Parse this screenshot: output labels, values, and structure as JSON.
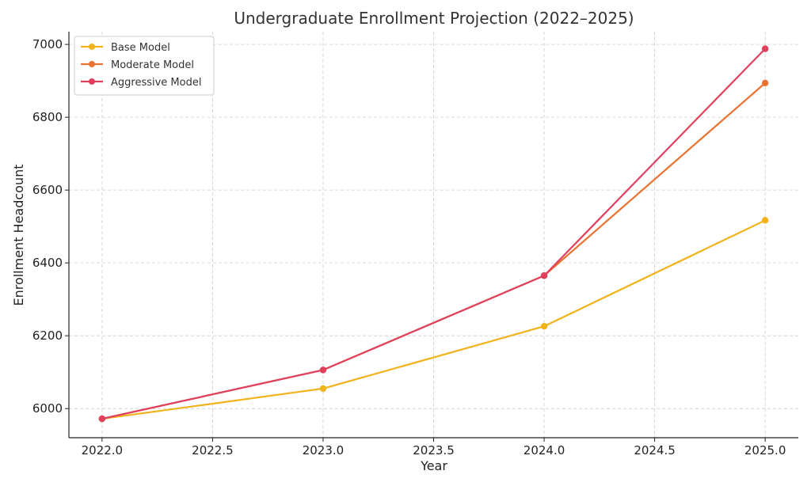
{
  "chart_data": {
    "type": "line",
    "title": "Undergraduate Enrollment Projection (2022–2025)",
    "xlabel": "Year",
    "ylabel": "Enrollment Headcount",
    "x": [
      2022,
      2023,
      2024,
      2025
    ],
    "xlim": [
      2021.85,
      2025.15
    ],
    "ylim": [
      5920,
      7035
    ],
    "xticks": [
      2022.0,
      2022.5,
      2023.0,
      2023.5,
      2024.0,
      2024.5,
      2025.0
    ],
    "xtick_labels": [
      "2022.0",
      "2022.5",
      "2023.0",
      "2023.5",
      "2024.0",
      "2024.5",
      "2025.0"
    ],
    "yticks": [
      6000,
      6200,
      6400,
      6600,
      6800,
      7000
    ],
    "ytick_labels": [
      "6000",
      "6200",
      "6400",
      "6600",
      "6800",
      "7000"
    ],
    "grid": true,
    "legend_position": "top-left",
    "series": [
      {
        "name": "Base Model",
        "color": "#f2b21a",
        "values": [
          5972,
          6055,
          6226,
          6517
        ]
      },
      {
        "name": "Moderate Model",
        "color": "#ea7332",
        "values": [
          5972,
          6106,
          6365,
          6894
        ]
      },
      {
        "name": "Aggressive Model",
        "color": "#e0405e",
        "values": [
          5972,
          6106,
          6365,
          6988
        ]
      }
    ]
  }
}
